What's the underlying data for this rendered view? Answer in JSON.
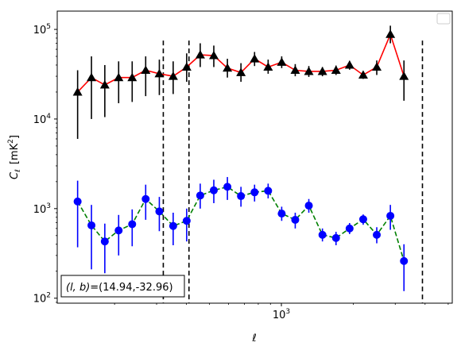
{
  "chart_data": {
    "type": "scatter",
    "xlabel": "ℓ",
    "ylabel": "C_ℓ [mK²]",
    "xscale": "log",
    "yscale": "log",
    "xlim": [
      115,
      5200
    ],
    "ylim": [
      88,
      160000
    ],
    "x_ticks": [
      {
        "value": 1000,
        "label": "10",
        "exp": "3"
      }
    ],
    "y_ticks": [
      {
        "value": 100,
        "label": "10",
        "exp": "2"
      },
      {
        "value": 1000,
        "label": "10",
        "exp": "3"
      },
      {
        "value": 10000,
        "label": "10",
        "exp": "4"
      },
      {
        "value": 100000,
        "label": "10",
        "exp": "5"
      }
    ],
    "legend": {
      "placement": "top-right",
      "entries": []
    },
    "annotation": {
      "prefix": "(l, b)",
      "value": "=(14.94,-32.96)",
      "placement": "bottom-left"
    },
    "vlines": [
      {
        "x": 320,
        "y_top": 75000
      },
      {
        "x": 410,
        "y_top": 75000
      },
      {
        "x": 3900,
        "y_top": 75000
      }
    ],
    "series": [
      {
        "color": "#ff0000",
        "marker": "triangle",
        "marker_color": "#000000",
        "errorbar_color": "#000000",
        "line_style": "solid",
        "points": [
          {
            "x": 140,
            "y": 20000,
            "ylo": 6000,
            "yhi": 35000
          },
          {
            "x": 160,
            "y": 29000,
            "ylo": 10000,
            "yhi": 50000
          },
          {
            "x": 182,
            "y": 24000,
            "ylo": 10500,
            "yhi": 40000
          },
          {
            "x": 208,
            "y": 29000,
            "ylo": 15000,
            "yhi": 44000
          },
          {
            "x": 237,
            "y": 29000,
            "ylo": 15500,
            "yhi": 44000
          },
          {
            "x": 270,
            "y": 35000,
            "ylo": 18000,
            "yhi": 50000
          },
          {
            "x": 308,
            "y": 32000,
            "ylo": 18500,
            "yhi": 46000
          },
          {
            "x": 352,
            "y": 30000,
            "ylo": 19000,
            "yhi": 44000
          },
          {
            "x": 401,
            "y": 38000,
            "ylo": 26000,
            "yhi": 54000
          },
          {
            "x": 457,
            "y": 52000,
            "ylo": 38000,
            "yhi": 70000
          },
          {
            "x": 521,
            "y": 51000,
            "ylo": 38000,
            "yhi": 66000
          },
          {
            "x": 594,
            "y": 37000,
            "ylo": 29000,
            "yhi": 47000
          },
          {
            "x": 677,
            "y": 33000,
            "ylo": 26000,
            "yhi": 42000
          },
          {
            "x": 772,
            "y": 47000,
            "ylo": 39000,
            "yhi": 56000
          },
          {
            "x": 880,
            "y": 38000,
            "ylo": 32000,
            "yhi": 46000
          },
          {
            "x": 1003,
            "y": 43000,
            "ylo": 37000,
            "yhi": 50000
          },
          {
            "x": 1143,
            "y": 35000,
            "ylo": 30000,
            "yhi": 41000
          },
          {
            "x": 1303,
            "y": 34000,
            "ylo": 29500,
            "yhi": 39000
          },
          {
            "x": 1486,
            "y": 34000,
            "ylo": 30000,
            "yhi": 38000
          },
          {
            "x": 1694,
            "y": 35000,
            "ylo": 31000,
            "yhi": 39500
          },
          {
            "x": 1931,
            "y": 40000,
            "ylo": 35500,
            "yhi": 44500
          },
          {
            "x": 2202,
            "y": 31000,
            "ylo": 28000,
            "yhi": 34000
          },
          {
            "x": 2510,
            "y": 38000,
            "ylo": 31000,
            "yhi": 45000
          },
          {
            "x": 2862,
            "y": 88000,
            "ylo": 70000,
            "yhi": 110000
          },
          {
            "x": 3263,
            "y": 30000,
            "ylo": 16000,
            "yhi": 45000
          }
        ]
      },
      {
        "color": "#008000",
        "marker": "circle",
        "marker_color": "#0000ff",
        "errorbar_color": "#0000ff",
        "line_style": "dashed",
        "points": [
          {
            "x": 140,
            "y": 1200,
            "ylo": 370,
            "yhi": 2050
          },
          {
            "x": 160,
            "y": 650,
            "ylo": 210,
            "yhi": 1100
          },
          {
            "x": 182,
            "y": 430,
            "ylo": 190,
            "yhi": 680
          },
          {
            "x": 208,
            "y": 570,
            "ylo": 300,
            "yhi": 850
          },
          {
            "x": 237,
            "y": 670,
            "ylo": 380,
            "yhi": 980
          },
          {
            "x": 270,
            "y": 1280,
            "ylo": 750,
            "yhi": 1850
          },
          {
            "x": 308,
            "y": 930,
            "ylo": 560,
            "yhi": 1350
          },
          {
            "x": 352,
            "y": 640,
            "ylo": 390,
            "yhi": 900
          },
          {
            "x": 401,
            "y": 730,
            "ylo": 430,
            "yhi": 1000
          },
          {
            "x": 457,
            "y": 1400,
            "ylo": 1000,
            "yhi": 1900
          },
          {
            "x": 521,
            "y": 1600,
            "ylo": 1150,
            "yhi": 2100
          },
          {
            "x": 594,
            "y": 1750,
            "ylo": 1250,
            "yhi": 2250
          },
          {
            "x": 677,
            "y": 1380,
            "ylo": 1050,
            "yhi": 1750
          },
          {
            "x": 772,
            "y": 1520,
            "ylo": 1200,
            "yhi": 1850
          },
          {
            "x": 880,
            "y": 1580,
            "ylo": 1300,
            "yhi": 1900
          },
          {
            "x": 1003,
            "y": 880,
            "ylo": 730,
            "yhi": 1050
          },
          {
            "x": 1143,
            "y": 750,
            "ylo": 600,
            "yhi": 900
          },
          {
            "x": 1303,
            "y": 1080,
            "ylo": 900,
            "yhi": 1280
          },
          {
            "x": 1486,
            "y": 510,
            "ylo": 430,
            "yhi": 600
          },
          {
            "x": 1694,
            "y": 470,
            "ylo": 390,
            "yhi": 550
          },
          {
            "x": 1931,
            "y": 600,
            "ylo": 520,
            "yhi": 690
          },
          {
            "x": 2202,
            "y": 760,
            "ylo": 660,
            "yhi": 860
          },
          {
            "x": 2510,
            "y": 510,
            "ylo": 410,
            "yhi": 620
          },
          {
            "x": 2862,
            "y": 830,
            "ylo": 580,
            "yhi": 1100
          },
          {
            "x": 3263,
            "y": 260,
            "ylo": 120,
            "yhi": 400
          }
        ]
      }
    ]
  }
}
